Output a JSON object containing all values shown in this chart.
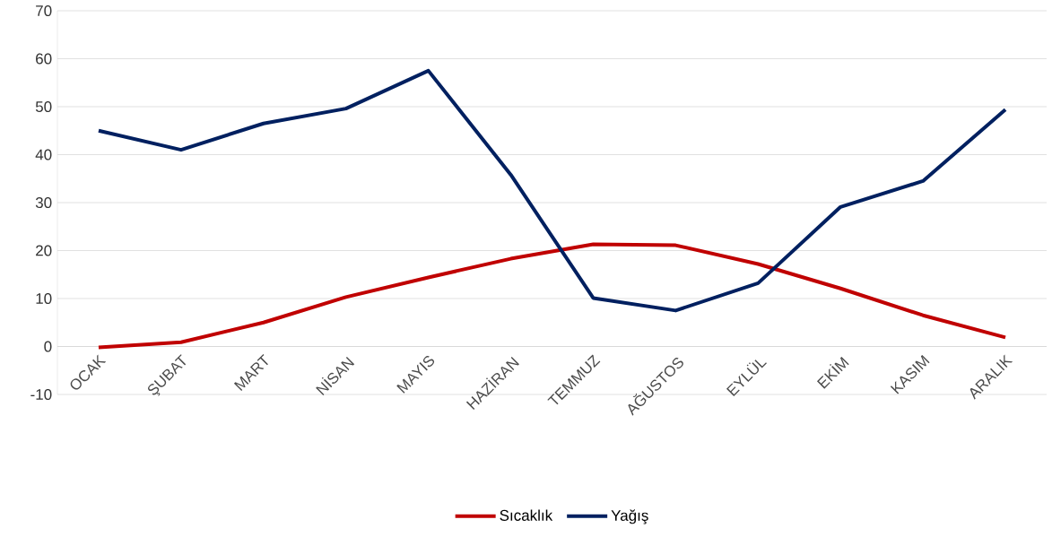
{
  "chart_data": {
    "type": "line",
    "categories": [
      "OCAK",
      "ŞUBAT",
      "MART",
      "NİSAN",
      "MAYIS",
      "HAZİRAN",
      "TEMMUZ",
      "AĞUSTOS",
      "EYLÜL",
      "EKİM",
      "KASIM",
      "ARALIK"
    ],
    "series": [
      {
        "name": "Sıcaklık",
        "color": "#c00000",
        "values": [
          -0.2,
          0.9,
          5.0,
          10.3,
          14.4,
          18.3,
          21.3,
          21.1,
          17.2,
          12.1,
          6.5,
          1.9
        ]
      },
      {
        "name": "Yağış",
        "color": "#002060",
        "values": [
          45.0,
          41.0,
          46.5,
          49.6,
          57.5,
          35.8,
          10.1,
          7.5,
          13.2,
          29.1,
          34.5,
          49.4
        ]
      }
    ],
    "ylim": [
      -10,
      70
    ],
    "yticks": [
      -10,
      0,
      10,
      20,
      30,
      40,
      50,
      60,
      70
    ],
    "grid": "y",
    "legend": "bottom",
    "marker": "none",
    "line_style": "solid"
  }
}
